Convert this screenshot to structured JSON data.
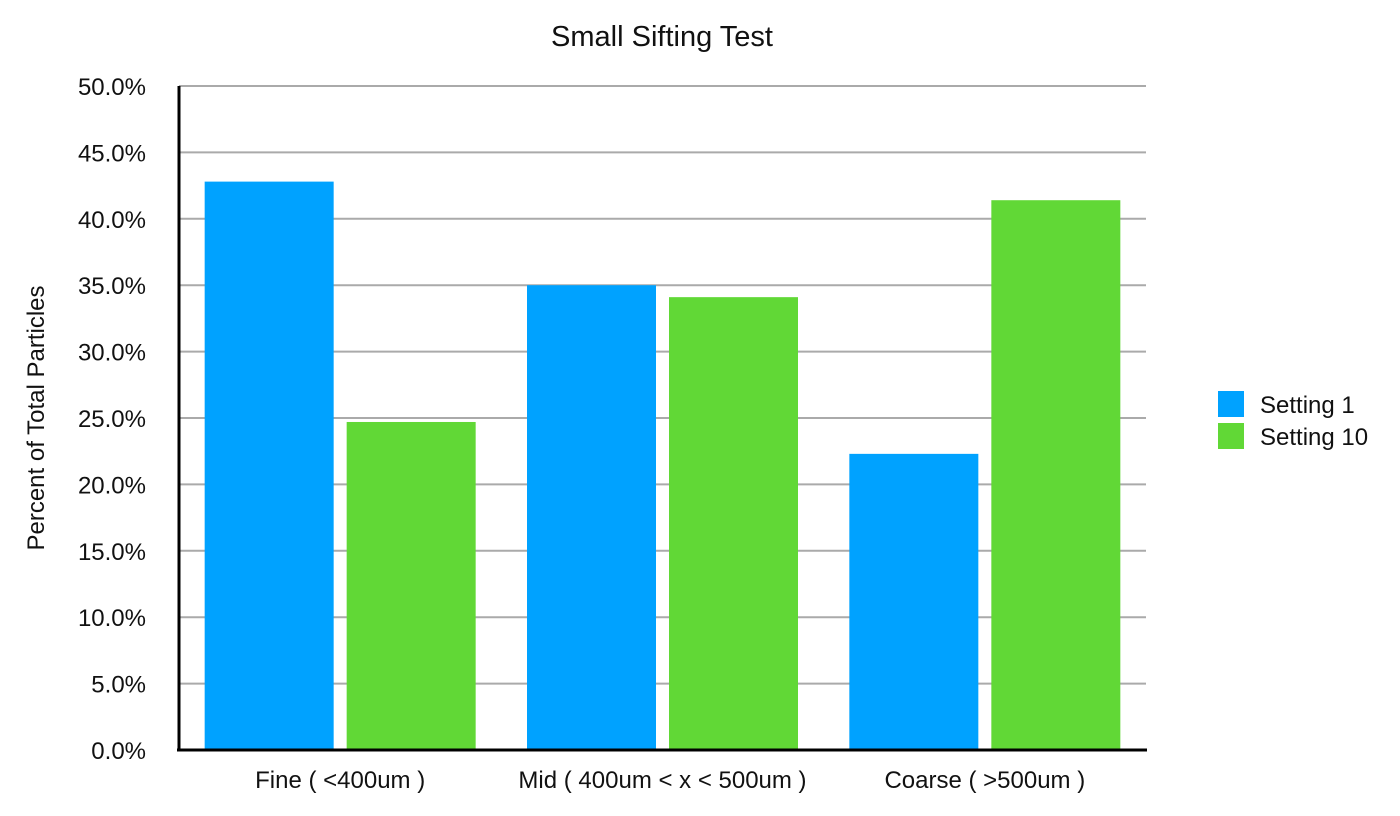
{
  "chart_data": {
    "type": "bar",
    "title": "Small Sifting Test",
    "xlabel": "",
    "ylabel": "Percent of Total Particles",
    "categories": [
      "Fine ( <400um )",
      "Mid ( 400um < x < 500um )",
      "Coarse ( >500um )"
    ],
    "series": [
      {
        "name": "Setting 1",
        "color": "#00a2ff",
        "values": [
          42.8,
          35.0,
          22.3
        ]
      },
      {
        "name": "Setting 10",
        "color": "#61d836",
        "values": [
          24.7,
          34.1,
          41.4
        ]
      }
    ],
    "ylim": [
      0,
      50
    ],
    "yticks": [
      "0.0%",
      "5.0%",
      "10.0%",
      "15.0%",
      "20.0%",
      "25.0%",
      "30.0%",
      "35.0%",
      "40.0%",
      "45.0%",
      "50.0%"
    ],
    "grid": true,
    "legend_position": "right"
  }
}
